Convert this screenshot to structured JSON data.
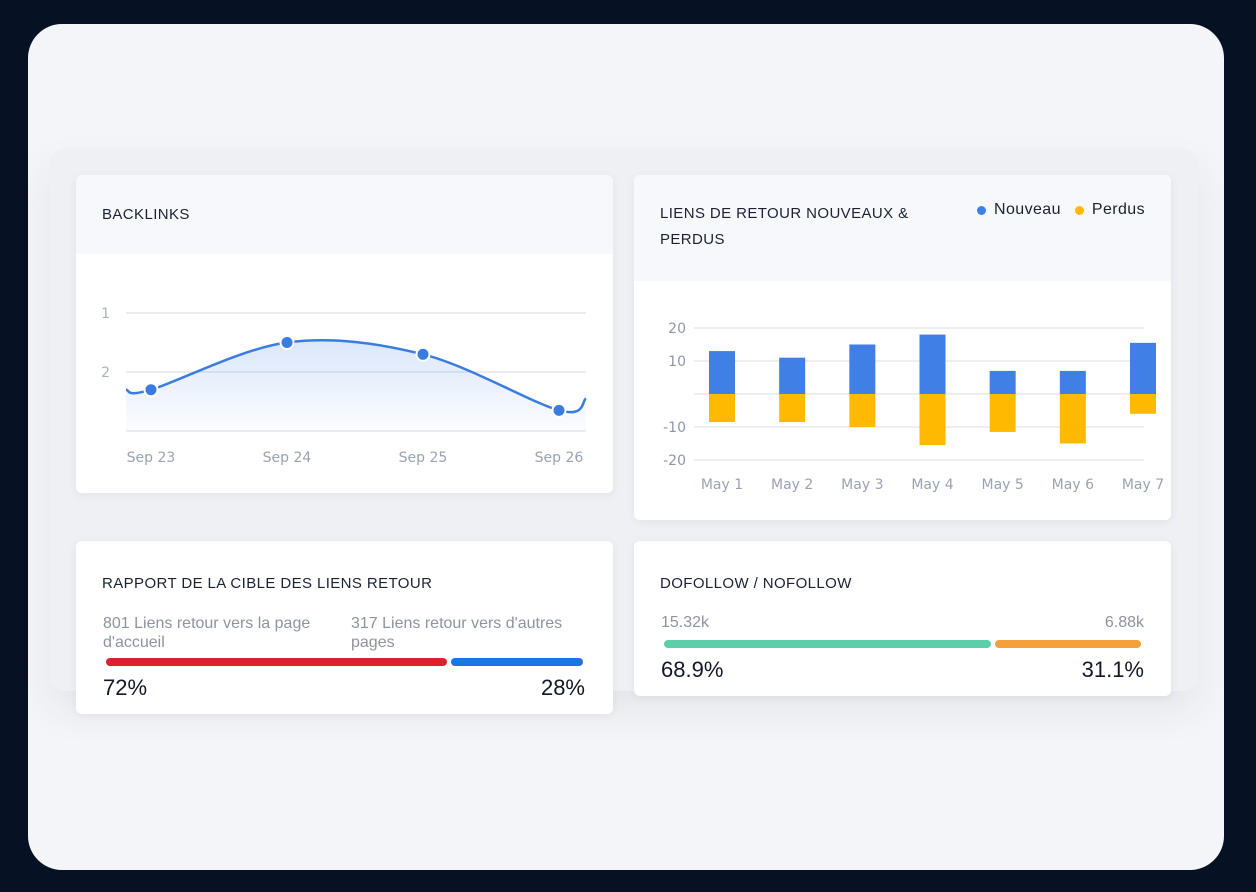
{
  "backlinks": {
    "title": "BACKLINKS",
    "chart_data": {
      "type": "line",
      "categories": [
        "Sep 23",
        "Sep 24",
        "Sep 25",
        "Sep 26"
      ],
      "y_tick_labels": [
        "1",
        "2"
      ],
      "values": [
        2.3,
        1.5,
        1.7,
        2.65
      ],
      "ylim": [
        0.0,
        3.0
      ],
      "grid": true,
      "fill": true,
      "color": "#3a7de0"
    }
  },
  "links_new_lost": {
    "title_line1": "LIENS DE RETOUR NOUVEAUX &",
    "title_line2": "PERDUS",
    "legend": [
      {
        "label": "Nouveau",
        "color": "#3f7fe6"
      },
      {
        "label": "Perdus",
        "color": "#ffba00"
      }
    ],
    "chart_data": {
      "type": "bar",
      "stacked": true,
      "categories": [
        "May 1",
        "May 2",
        "May 3",
        "May 4",
        "May 5",
        "May 6",
        "May 7"
      ],
      "y_ticks": [
        20,
        10,
        -10,
        -20
      ],
      "ylim": [
        -20,
        20
      ],
      "grid": true,
      "series": [
        {
          "name": "Nouveau",
          "values": [
            13,
            11,
            15,
            18,
            7,
            7,
            15.5
          ],
          "color": "#3f7fe6"
        },
        {
          "name": "Perdus",
          "values": [
            -8.5,
            -8.5,
            -10,
            -15.5,
            -11.5,
            -15,
            -6
          ],
          "color": "#ffba00"
        }
      ]
    }
  },
  "target_ratio": {
    "title": "RAPPORT DE LA CIBLE DES LIENS RETOUR",
    "left_label": "801 Liens retour vers la page d'accueil",
    "right_label": "317 Liens retour vers d'autres pages",
    "left_pct_text": "72%",
    "right_pct_text": "28%",
    "left_fraction": 0.72,
    "left_color": "#d9212f",
    "right_color": "#1f74e3"
  },
  "dofollow": {
    "title": "DOFOLLOW / NOFOLLOW",
    "left_value": "15.32k",
    "right_value": "6.88k",
    "left_pct_text": "68.9%",
    "right_pct_text": "31.1%",
    "left_fraction": 0.689,
    "left_color": "#5ccfaa",
    "right_color": "#f3a13a"
  }
}
